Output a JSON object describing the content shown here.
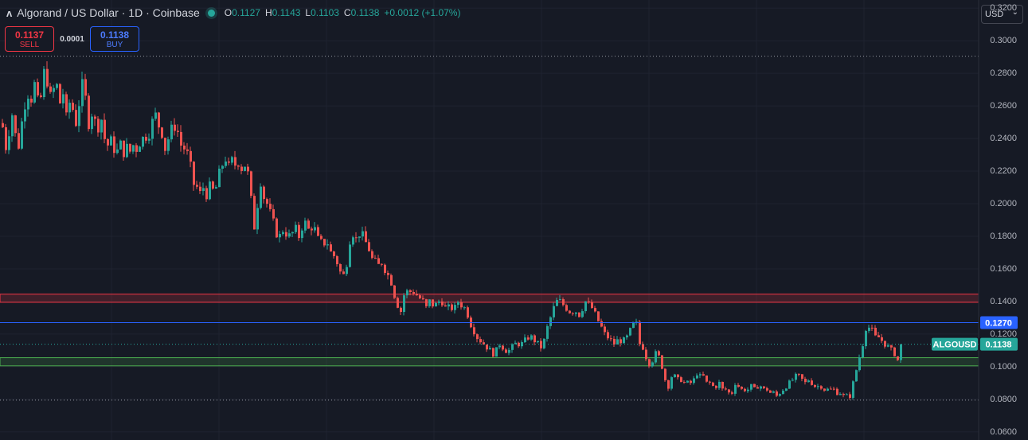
{
  "header": {
    "logo": "ʌ",
    "title": "Algorand / US Dollar · 1D · Coinbase",
    "ohlc": [
      {
        "k": "O",
        "v": "0.1127"
      },
      {
        "k": "H",
        "v": "0.1143"
      },
      {
        "k": "L",
        "v": "0.1103"
      },
      {
        "k": "C",
        "v": "0.1138"
      }
    ],
    "change": "+0.0012 (+1.07%)"
  },
  "trade": {
    "sell_price": "0.1137",
    "sell_label": "SELL",
    "spread": "0.0001",
    "buy_price": "0.1138",
    "buy_label": "BUY"
  },
  "currency": {
    "label": "USD",
    "chevron": "⌄"
  },
  "colors": {
    "background": "#161a25",
    "up": "#26a69a",
    "down": "#ef5350",
    "resistance_zone": "#f23645",
    "support_zone": "#4caf50",
    "hline": "#2962ff"
  },
  "chart_data": {
    "type": "candlestick",
    "symbol": "ALGOUSD",
    "interval": "1D",
    "ylim": [
      0.055,
      0.325
    ],
    "yticks": [
      "0.3200",
      "0.3000",
      "0.2800",
      "0.2600",
      "0.2400",
      "0.2200",
      "0.2000",
      "0.1800",
      "0.1600",
      "0.1400",
      "0.1200",
      "0.1000",
      "0.0800",
      "0.0600"
    ],
    "last_price": 0.1138,
    "last_price_label": "0.1138",
    "symbol_label": "ALGOUSD",
    "horizontal_line": {
      "value": 0.127,
      "label": "0.1270"
    },
    "zones": [
      {
        "type": "resistance",
        "low": 0.1395,
        "high": 0.1445
      },
      {
        "type": "support",
        "low": 0.1005,
        "high": 0.1055
      }
    ],
    "dotted_levels": [
      0.2905,
      0.0795
    ],
    "close_path": [
      [
        0,
        0.247
      ],
      [
        4,
        0.235
      ],
      [
        8,
        0.245
      ],
      [
        12,
        0.255
      ],
      [
        16,
        0.242
      ],
      [
        20,
        0.236
      ],
      [
        24,
        0.25
      ],
      [
        28,
        0.262
      ],
      [
        32,
        0.268
      ],
      [
        36,
        0.265
      ],
      [
        40,
        0.273
      ],
      [
        44,
        0.262
      ],
      [
        48,
        0.265
      ],
      [
        52,
        0.28
      ],
      [
        56,
        0.276
      ],
      [
        60,
        0.265
      ],
      [
        64,
        0.27
      ],
      [
        68,
        0.272
      ],
      [
        72,
        0.262
      ],
      [
        76,
        0.268
      ],
      [
        80,
        0.252
      ],
      [
        84,
        0.262
      ],
      [
        88,
        0.258
      ],
      [
        92,
        0.25
      ],
      [
        96,
        0.262
      ],
      [
        100,
        0.272
      ],
      [
        104,
        0.264
      ],
      [
        108,
        0.25
      ],
      [
        112,
        0.256
      ],
      [
        116,
        0.25
      ],
      [
        120,
        0.248
      ],
      [
        124,
        0.252
      ],
      [
        128,
        0.24
      ],
      [
        132,
        0.236
      ],
      [
        136,
        0.238
      ],
      [
        140,
        0.234
      ],
      [
        144,
        0.232
      ],
      [
        148,
        0.236
      ],
      [
        152,
        0.232
      ],
      [
        156,
        0.234
      ],
      [
        160,
        0.232
      ],
      [
        164,
        0.236
      ],
      [
        168,
        0.234
      ],
      [
        172,
        0.238
      ],
      [
        176,
        0.24
      ],
      [
        180,
        0.242
      ],
      [
        184,
        0.244
      ],
      [
        188,
        0.25
      ],
      [
        192,
        0.254
      ],
      [
        196,
        0.248
      ],
      [
        200,
        0.244
      ],
      [
        204,
        0.234
      ],
      [
        208,
        0.24
      ],
      [
        212,
        0.245
      ],
      [
        216,
        0.248
      ],
      [
        220,
        0.244
      ],
      [
        224,
        0.236
      ],
      [
        228,
        0.234
      ],
      [
        232,
        0.23
      ],
      [
        236,
        0.222
      ],
      [
        240,
        0.212
      ],
      [
        244,
        0.21
      ],
      [
        248,
        0.206
      ],
      [
        252,
        0.21
      ],
      [
        256,
        0.206
      ],
      [
        260,
        0.21
      ],
      [
        264,
        0.208
      ],
      [
        268,
        0.21
      ],
      [
        272,
        0.218
      ],
      [
        276,
        0.224
      ],
      [
        280,
        0.228
      ],
      [
        284,
        0.222
      ],
      [
        288,
        0.226
      ],
      [
        292,
        0.224
      ],
      [
        296,
        0.226
      ],
      [
        300,
        0.222
      ],
      [
        304,
        0.224
      ],
      [
        308,
        0.218
      ],
      [
        312,
        0.202
      ],
      [
        316,
        0.186
      ],
      [
        320,
        0.2
      ],
      [
        324,
        0.214
      ],
      [
        328,
        0.204
      ],
      [
        332,
        0.2
      ],
      [
        336,
        0.194
      ],
      [
        340,
        0.188
      ],
      [
        344,
        0.182
      ],
      [
        348,
        0.18
      ],
      [
        352,
        0.184
      ],
      [
        356,
        0.182
      ],
      [
        360,
        0.18
      ],
      [
        364,
        0.182
      ],
      [
        368,
        0.184
      ],
      [
        372,
        0.18
      ],
      [
        376,
        0.186
      ],
      [
        380,
        0.188
      ],
      [
        384,
        0.184
      ],
      [
        388,
        0.186
      ],
      [
        392,
        0.184
      ],
      [
        396,
        0.178
      ],
      [
        400,
        0.176
      ],
      [
        404,
        0.176
      ],
      [
        408,
        0.176
      ],
      [
        412,
        0.17
      ],
      [
        416,
        0.168
      ],
      [
        420,
        0.164
      ],
      [
        424,
        0.158
      ],
      [
        428,
        0.156
      ],
      [
        432,
        0.164
      ],
      [
        436,
        0.178
      ],
      [
        440,
        0.182
      ],
      [
        444,
        0.178
      ],
      [
        448,
        0.182
      ],
      [
        452,
        0.18
      ],
      [
        456,
        0.176
      ],
      [
        460,
        0.172
      ],
      [
        464,
        0.166
      ],
      [
        468,
        0.164
      ],
      [
        472,
        0.162
      ],
      [
        476,
        0.164
      ],
      [
        480,
        0.16
      ],
      [
        484,
        0.156
      ],
      [
        488,
        0.152
      ],
      [
        492,
        0.144
      ],
      [
        496,
        0.138
      ],
      [
        500,
        0.134
      ],
      [
        504,
        0.144
      ],
      [
        508,
        0.146
      ],
      [
        512,
        0.146
      ],
      [
        516,
        0.146
      ],
      [
        520,
        0.144
      ],
      [
        524,
        0.142
      ],
      [
        528,
        0.14
      ],
      [
        532,
        0.136
      ],
      [
        536,
        0.14
      ],
      [
        540,
        0.138
      ],
      [
        544,
        0.138
      ],
      [
        548,
        0.14
      ],
      [
        552,
        0.14
      ],
      [
        556,
        0.136
      ],
      [
        560,
        0.136
      ],
      [
        564,
        0.136
      ],
      [
        568,
        0.136
      ],
      [
        572,
        0.14
      ],
      [
        576,
        0.138
      ],
      [
        580,
        0.136
      ],
      [
        584,
        0.132
      ],
      [
        588,
        0.126
      ],
      [
        592,
        0.122
      ],
      [
        596,
        0.118
      ],
      [
        600,
        0.116
      ],
      [
        604,
        0.114
      ],
      [
        608,
        0.112
      ],
      [
        612,
        0.11
      ],
      [
        616,
        0.108
      ],
      [
        620,
        0.11
      ],
      [
        624,
        0.114
      ],
      [
        628,
        0.112
      ],
      [
        632,
        0.11
      ],
      [
        636,
        0.11
      ],
      [
        640,
        0.112
      ],
      [
        644,
        0.114
      ],
      [
        648,
        0.114
      ],
      [
        652,
        0.114
      ],
      [
        656,
        0.116
      ],
      [
        660,
        0.118
      ],
      [
        664,
        0.118
      ],
      [
        668,
        0.116
      ],
      [
        672,
        0.114
      ],
      [
        676,
        0.112
      ],
      [
        680,
        0.116
      ],
      [
        684,
        0.124
      ],
      [
        688,
        0.13
      ],
      [
        692,
        0.136
      ],
      [
        696,
        0.14
      ],
      [
        700,
        0.14
      ],
      [
        704,
        0.138
      ],
      [
        708,
        0.136
      ],
      [
        712,
        0.134
      ],
      [
        716,
        0.134
      ],
      [
        720,
        0.134
      ],
      [
        724,
        0.132
      ],
      [
        728,
        0.136
      ],
      [
        732,
        0.14
      ],
      [
        736,
        0.138
      ],
      [
        740,
        0.136
      ],
      [
        744,
        0.132
      ],
      [
        748,
        0.128
      ],
      [
        752,
        0.124
      ],
      [
        756,
        0.12
      ],
      [
        760,
        0.118
      ],
      [
        764,
        0.116
      ],
      [
        768,
        0.114
      ],
      [
        772,
        0.116
      ],
      [
        776,
        0.116
      ],
      [
        780,
        0.116
      ],
      [
        784,
        0.118
      ],
      [
        788,
        0.122
      ],
      [
        792,
        0.126
      ],
      [
        796,
        0.126
      ],
      [
        800,
        0.114
      ],
      [
        804,
        0.112
      ],
      [
        808,
        0.106
      ],
      [
        812,
        0.102
      ],
      [
        816,
        0.104
      ],
      [
        820,
        0.108
      ],
      [
        824,
        0.106
      ],
      [
        828,
        0.1
      ],
      [
        832,
        0.092
      ],
      [
        836,
        0.088
      ],
      [
        840,
        0.094
      ],
      [
        844,
        0.094
      ],
      [
        848,
        0.092
      ],
      [
        852,
        0.092
      ],
      [
        856,
        0.09
      ],
      [
        860,
        0.09
      ],
      [
        864,
        0.09
      ],
      [
        868,
        0.092
      ],
      [
        872,
        0.096
      ],
      [
        876,
        0.094
      ],
      [
        880,
        0.094
      ],
      [
        884,
        0.09
      ],
      [
        888,
        0.09
      ],
      [
        892,
        0.088
      ],
      [
        896,
        0.088
      ],
      [
        900,
        0.09
      ],
      [
        904,
        0.086
      ],
      [
        908,
        0.086
      ],
      [
        912,
        0.084
      ],
      [
        916,
        0.084
      ],
      [
        920,
        0.09
      ],
      [
        924,
        0.088
      ],
      [
        928,
        0.086
      ],
      [
        932,
        0.086
      ],
      [
        936,
        0.086
      ],
      [
        940,
        0.088
      ],
      [
        944,
        0.086
      ],
      [
        948,
        0.088
      ],
      [
        952,
        0.088
      ],
      [
        956,
        0.086
      ],
      [
        960,
        0.086
      ],
      [
        964,
        0.084
      ],
      [
        968,
        0.084
      ],
      [
        972,
        0.082
      ],
      [
        976,
        0.084
      ],
      [
        980,
        0.086
      ],
      [
        984,
        0.088
      ],
      [
        988,
        0.09
      ],
      [
        992,
        0.092
      ],
      [
        996,
        0.094
      ],
      [
        1000,
        0.094
      ],
      [
        1004,
        0.092
      ],
      [
        1008,
        0.09
      ],
      [
        1012,
        0.092
      ],
      [
        1016,
        0.09
      ],
      [
        1020,
        0.088
      ],
      [
        1024,
        0.088
      ],
      [
        1028,
        0.088
      ],
      [
        1032,
        0.086
      ],
      [
        1036,
        0.086
      ],
      [
        1040,
        0.086
      ],
      [
        1044,
        0.086
      ],
      [
        1048,
        0.084
      ],
      [
        1052,
        0.084
      ],
      [
        1056,
        0.082
      ],
      [
        1060,
        0.082
      ],
      [
        1064,
        0.082
      ],
      [
        1068,
        0.09
      ],
      [
        1072,
        0.098
      ],
      [
        1076,
        0.106
      ],
      [
        1080,
        0.114
      ],
      [
        1084,
        0.124
      ],
      [
        1088,
        0.124
      ],
      [
        1092,
        0.122
      ],
      [
        1096,
        0.118
      ],
      [
        1100,
        0.118
      ],
      [
        1104,
        0.116
      ],
      [
        1108,
        0.114
      ],
      [
        1112,
        0.112
      ],
      [
        1116,
        0.11
      ],
      [
        1120,
        0.108
      ],
      [
        1124,
        0.104
      ],
      [
        1128,
        0.106
      ],
      [
        1132,
        0.11
      ],
      [
        1136,
        0.1138
      ]
    ]
  }
}
